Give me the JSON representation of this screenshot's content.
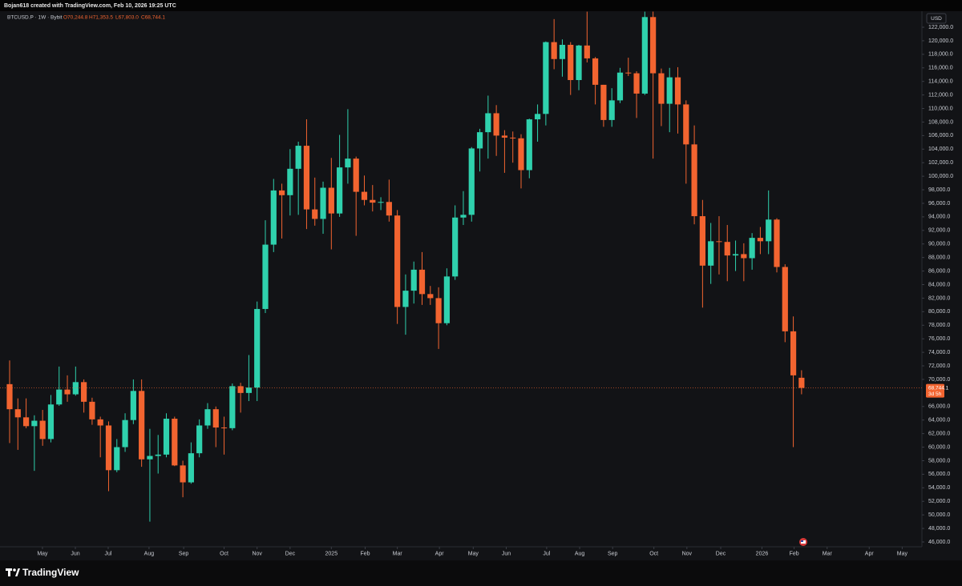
{
  "header": {
    "title": "Bojan618 created with TradingView.com, Feb 10, 2026 19:25 UTC"
  },
  "footer": {
    "brand": "TradingView"
  },
  "chart_data": {
    "type": "candlestick",
    "legend": {
      "symbol": "BTCUSD.P · 1W · Bybit",
      "open": "O70,244.8",
      "high": "H71,353.5",
      "low": "L67,803.0",
      "close": "C68,744.1"
    },
    "currency": "USD",
    "last_price_label": "68,744.1",
    "countdown": "3d 5h",
    "up_color": "#2fd1ad",
    "down_color": "#f26430",
    "grid": false,
    "open": [
      69300,
      65600,
      64400,
      63100,
      63900,
      61200,
      66300,
      68500,
      67800,
      69600,
      66700,
      64100,
      63200,
      56600,
      60000,
      64000,
      68300,
      58200,
      58700,
      58900,
      64200,
      57300,
      54800,
      59100,
      63200,
      65600,
      62900,
      62800,
      69000,
      68000,
      68800,
      80400,
      89900,
      97900,
      97200,
      101100,
      104500,
      95100,
      93700,
      98300,
      94500,
      101300,
      102600,
      97700,
      96500,
      96100,
      96200,
      94200,
      80700,
      83100,
      86200,
      82600,
      82000,
      78300,
      85200,
      93900,
      94300,
      104100,
      106500,
      109300,
      106000,
      105700,
      105600,
      100900,
      108400,
      109200,
      119800,
      117300,
      119400,
      114200,
      119300,
      117400,
      113500,
      108300,
      111200,
      115300,
      115200,
      112200,
      123500,
      115200,
      110700,
      114600,
      110600,
      104700,
      94100,
      86800,
      90400,
      90300,
      88300,
      88500,
      87900,
      90900,
      90400,
      93600,
      86600,
      77100,
      70244.8
    ],
    "high": [
      72800,
      67200,
      67200,
      64700,
      65500,
      67700,
      71900,
      70600,
      71900,
      70000,
      67300,
      64500,
      63800,
      61200,
      65000,
      70000,
      70000,
      62700,
      61800,
      65000,
      64500,
      58000,
      60700,
      64100,
      66500,
      66000,
      64500,
      69400,
      69500,
      73600,
      81500,
      93500,
      99600,
      98900,
      104000,
      105100,
      108400,
      99800,
      99200,
      102700,
      106100,
      109900,
      102900,
      100100,
      98700,
      96900,
      99500,
      95000,
      85500,
      87400,
      88800,
      83800,
      83600,
      86400,
      95700,
      97800,
      104300,
      107000,
      111900,
      110500,
      106800,
      106600,
      106200,
      108500,
      110600,
      119900,
      123200,
      120200,
      119800,
      119400,
      124300,
      117600,
      113500,
      113000,
      116000,
      117500,
      115500,
      124300,
      124300,
      115900,
      116000,
      116100,
      111200,
      107500,
      96500,
      93100,
      94100,
      92800,
      90500,
      90100,
      91600,
      92500,
      97900,
      93800,
      87000,
      79300,
      71353.5
    ],
    "low": [
      60600,
      59600,
      62800,
      56500,
      60200,
      60700,
      66100,
      66700,
      67600,
      65100,
      63300,
      58500,
      53500,
      56300,
      59300,
      63400,
      57100,
      49000,
      56100,
      58500,
      57200,
      52600,
      54600,
      58500,
      62700,
      60000,
      58900,
      62500,
      65100,
      66800,
      66800,
      79800,
      88800,
      90800,
      94200,
      94300,
      92200,
      92700,
      91500,
      89200,
      94000,
      98900,
      91200,
      95700,
      94800,
      95000,
      93300,
      78200,
      76600,
      81200,
      81000,
      81000,
      74500,
      78000,
      84700,
      92800,
      93300,
      100700,
      102600,
      103000,
      100500,
      102000,
      98200,
      99700,
      105100,
      107500,
      115800,
      114700,
      112000,
      112700,
      116800,
      110600,
      107300,
      107300,
      110800,
      114800,
      108600,
      112000,
      102600,
      107400,
      106500,
      106300,
      98900,
      92900,
      80600,
      84100,
      85500,
      84500,
      86000,
      84500,
      86200,
      88500,
      88500,
      85800,
      75500,
      60000,
      67803.0
    ],
    "close": [
      65600,
      64400,
      63100,
      63900,
      61200,
      66300,
      68500,
      67800,
      69600,
      66700,
      64100,
      63200,
      56600,
      60000,
      64000,
      68300,
      58200,
      58700,
      58900,
      64200,
      57300,
      54800,
      59100,
      63200,
      65600,
      62900,
      62800,
      69000,
      68000,
      68800,
      80400,
      89900,
      97900,
      97200,
      101100,
      104500,
      95100,
      93700,
      98300,
      94500,
      101300,
      102600,
      97700,
      96500,
      96100,
      96200,
      94200,
      80700,
      83100,
      86200,
      82600,
      82000,
      78300,
      85200,
      93900,
      94300,
      104100,
      106500,
      109300,
      106000,
      105700,
      105600,
      100900,
      108400,
      109200,
      119800,
      117300,
      119400,
      114200,
      119300,
      117400,
      113500,
      108300,
      111200,
      115300,
      115200,
      112200,
      123500,
      115200,
      110700,
      114600,
      110600,
      104700,
      94100,
      86800,
      90400,
      90300,
      88300,
      88500,
      87900,
      90900,
      90400,
      93600,
      86600,
      77100,
      70600,
      68744.1
    ],
    "xlim": [
      -1.166,
      110.59
    ],
    "xticks": [
      {
        "value": 3.98,
        "label": "May"
      },
      {
        "value": 7.97,
        "label": "Jun"
      },
      {
        "value": 11.95,
        "label": "Jul"
      },
      {
        "value": 16.9,
        "label": "Aug"
      },
      {
        "value": 21.1,
        "label": "Sep"
      },
      {
        "value": 26.0,
        "label": "Oct"
      },
      {
        "value": 30.0,
        "label": "Nov"
      },
      {
        "value": 34.0,
        "label": "Dec"
      },
      {
        "value": 39.0,
        "label": "2025"
      },
      {
        "value": 43.1,
        "label": "Feb"
      },
      {
        "value": 47.0,
        "label": "Mar"
      },
      {
        "value": 52.1,
        "label": "Apr"
      },
      {
        "value": 56.2,
        "label": "May"
      },
      {
        "value": 60.2,
        "label": "Jun"
      },
      {
        "value": 65.1,
        "label": "Jul"
      },
      {
        "value": 69.1,
        "label": "Aug"
      },
      {
        "value": 73.1,
        "label": "Sep"
      },
      {
        "value": 78.1,
        "label": "Oct"
      },
      {
        "value": 82.1,
        "label": "Nov"
      },
      {
        "value": 86.2,
        "label": "Dec"
      },
      {
        "value": 91.2,
        "label": "2026"
      },
      {
        "value": 95.1,
        "label": "Feb"
      },
      {
        "value": 99.1,
        "label": "Mar"
      },
      {
        "value": 104.2,
        "label": "Apr"
      },
      {
        "value": 108.2,
        "label": "May"
      }
    ],
    "ylim": [
      45290,
      124364
    ],
    "yticks": [
      {
        "value": 46000,
        "label": "46,000.0"
      },
      {
        "value": 48000,
        "label": "48,000.0"
      },
      {
        "value": 50000,
        "label": "50,000.0"
      },
      {
        "value": 52000,
        "label": "52,000.0"
      },
      {
        "value": 54000,
        "label": "54,000.0"
      },
      {
        "value": 56000,
        "label": "56,000.0"
      },
      {
        "value": 58000,
        "label": "58,000.0"
      },
      {
        "value": 60000,
        "label": "60,000.0"
      },
      {
        "value": 62000,
        "label": "62,000.0"
      },
      {
        "value": 64000,
        "label": "64,000.0"
      },
      {
        "value": 66000,
        "label": "66,000.0"
      },
      {
        "value": 70000,
        "label": "70,000.0"
      },
      {
        "value": 72000,
        "label": "72,000.0"
      },
      {
        "value": 74000,
        "label": "74,000.0"
      },
      {
        "value": 76000,
        "label": "76,000.0"
      },
      {
        "value": 78000,
        "label": "78,000.0"
      },
      {
        "value": 80000,
        "label": "80,000.0"
      },
      {
        "value": 82000,
        "label": "82,000.0"
      },
      {
        "value": 84000,
        "label": "84,000.0"
      },
      {
        "value": 86000,
        "label": "86,000.0"
      },
      {
        "value": 88000,
        "label": "88,000.0"
      },
      {
        "value": 90000,
        "label": "90,000.0"
      },
      {
        "value": 92000,
        "label": "92,000.0"
      },
      {
        "value": 94000,
        "label": "94,000.0"
      },
      {
        "value": 96000,
        "label": "96,000.0"
      },
      {
        "value": 98000,
        "label": "98,000.0"
      },
      {
        "value": 100000,
        "label": "100,000.0"
      },
      {
        "value": 102000,
        "label": "102,000.0"
      },
      {
        "value": 104000,
        "label": "104,000.0"
      },
      {
        "value": 106000,
        "label": "106,000.0"
      },
      {
        "value": 108000,
        "label": "108,000.0"
      },
      {
        "value": 110000,
        "label": "110,000.0"
      },
      {
        "value": 112000,
        "label": "112,000.0"
      },
      {
        "value": 114000,
        "label": "114,000.0"
      },
      {
        "value": 116000,
        "label": "116,000.0"
      },
      {
        "value": 118000,
        "label": "118,000.0"
      },
      {
        "value": 120000,
        "label": "120,000.0"
      },
      {
        "value": 122000,
        "label": "122,000.0"
      }
    ]
  }
}
